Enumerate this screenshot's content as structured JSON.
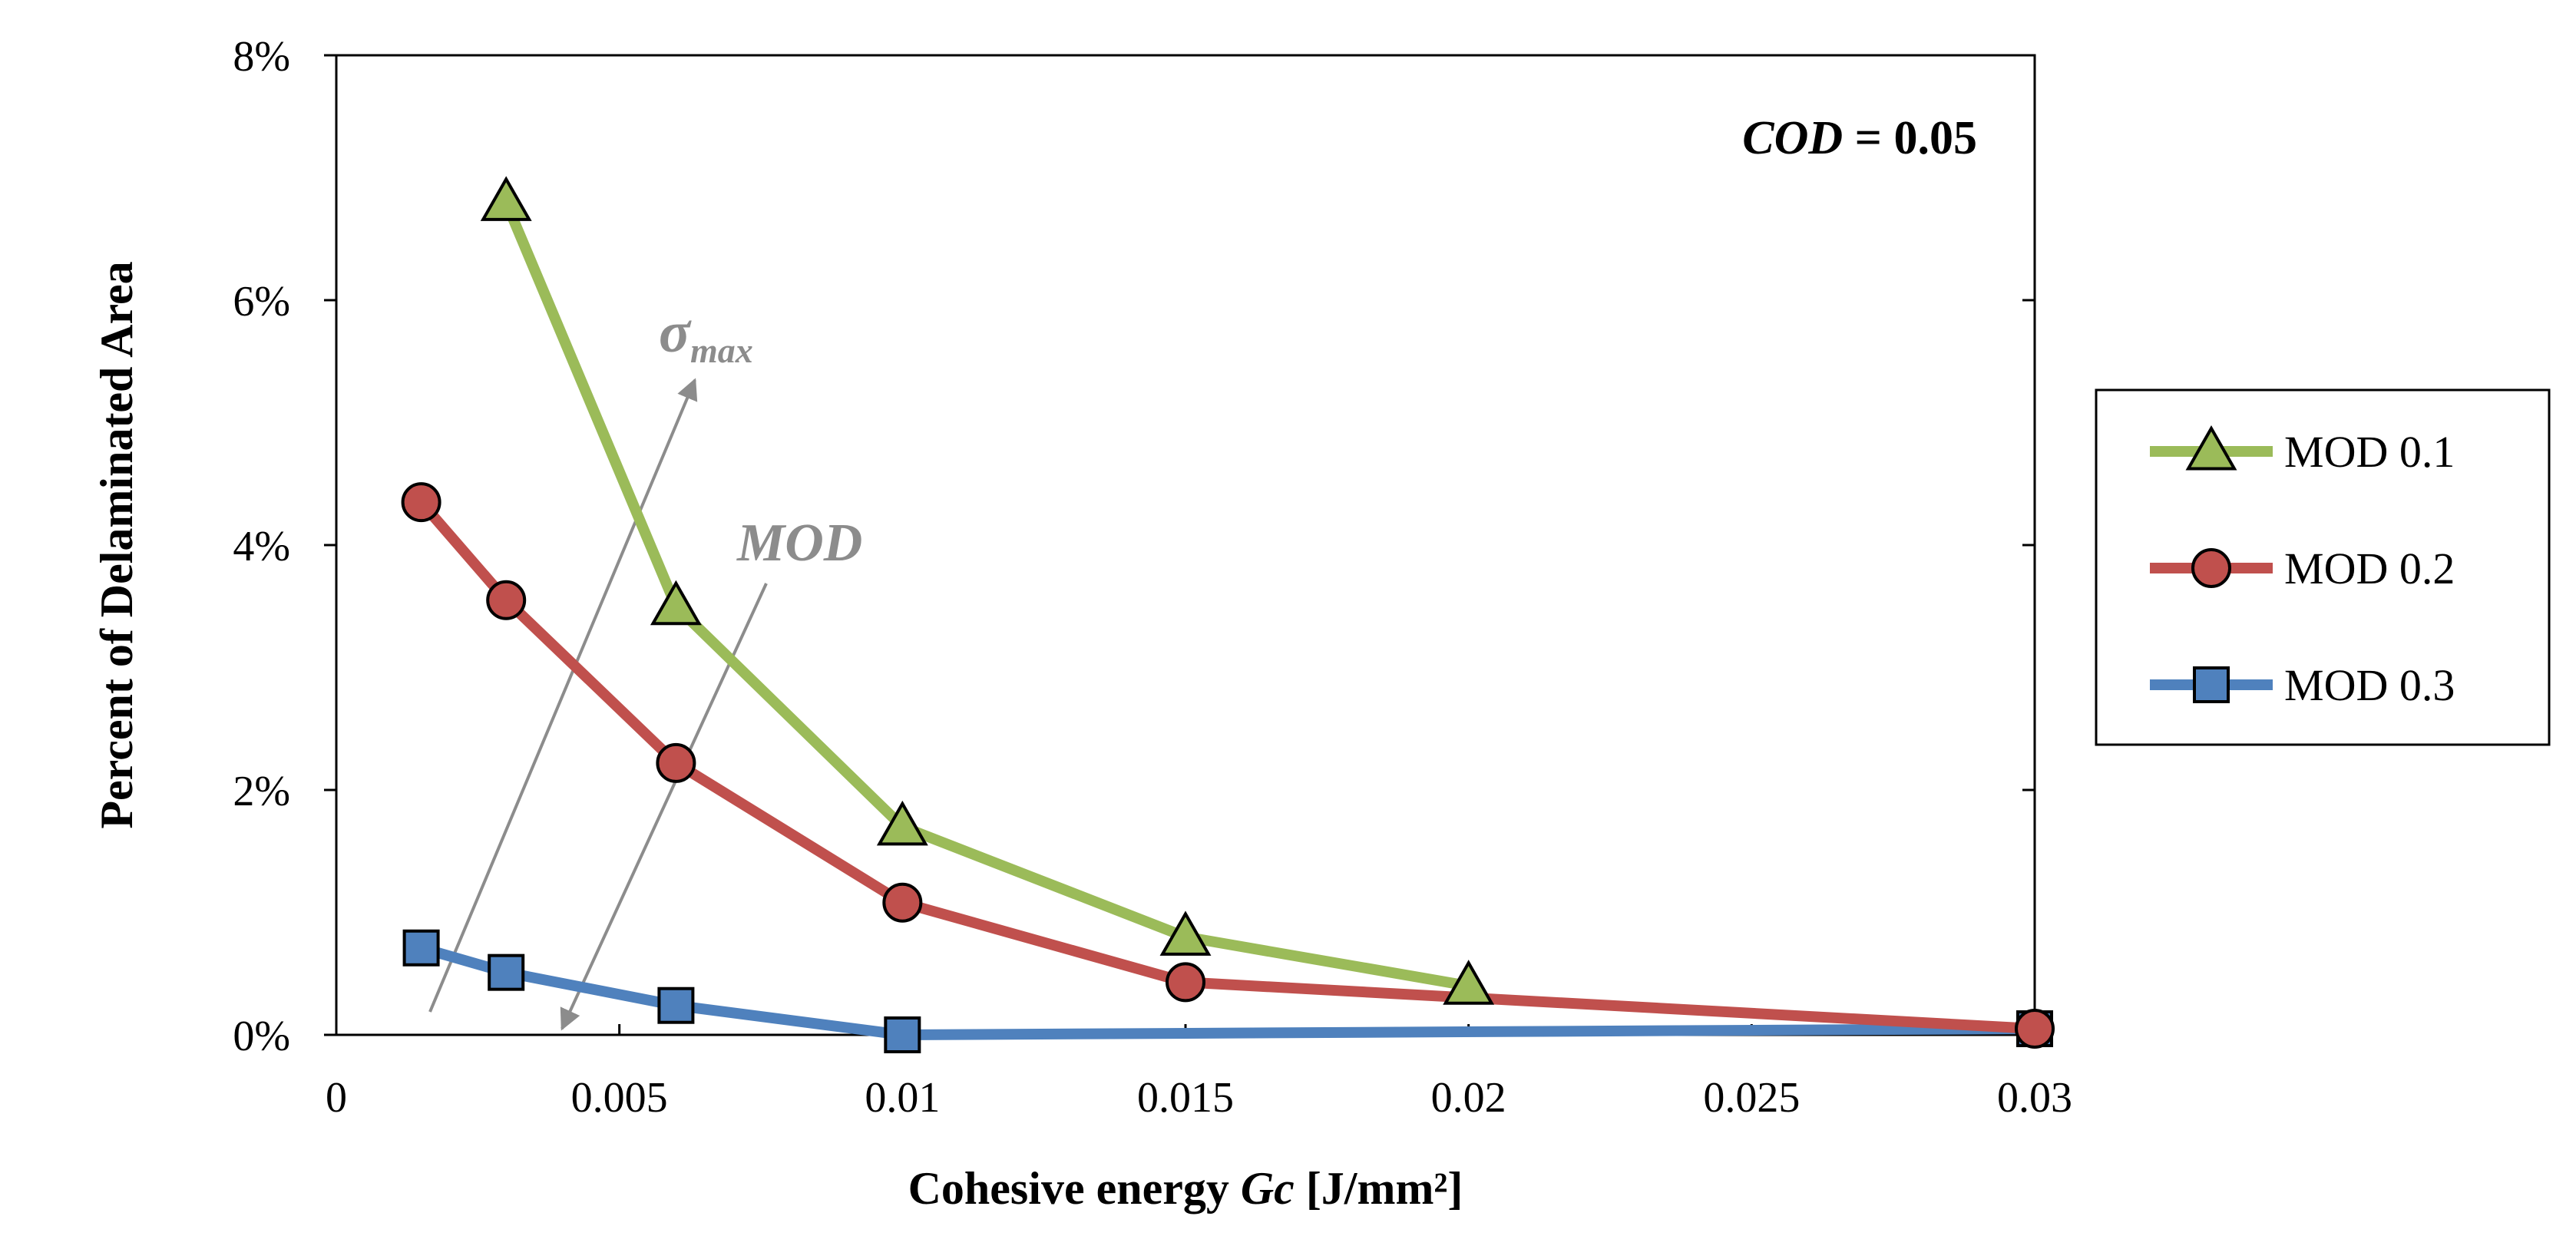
{
  "chart_data": {
    "type": "line",
    "xlabel_prefix": "Cohesive energy ",
    "xlabel_var": "Gc",
    "xlabel_unit": " [J/mm²]",
    "ylabel": "Percent of Delaminated Area",
    "xlim": [
      0,
      0.03
    ],
    "ylim": [
      0,
      0.08
    ],
    "x_ticks": [
      0,
      0.005,
      0.01,
      0.015,
      0.02,
      0.025,
      0.03
    ],
    "x_tick_labels": [
      "0",
      "0.005",
      "0.01",
      "0.015",
      "0.02",
      "0.025",
      "0.03"
    ],
    "y_ticks": [
      0,
      0.02,
      0.04,
      0.06,
      0.08
    ],
    "y_tick_labels": [
      "0%",
      "2%",
      "4%",
      "6%",
      "8%"
    ],
    "grid": false,
    "legend_position": "right",
    "annotation": {
      "var": "COD",
      "text": " = 0.05"
    },
    "arrow_labels": {
      "sigma": "σ",
      "sigma_sub": "max",
      "mod": "MOD"
    },
    "series": [
      {
        "name": "MOD 0.1",
        "marker": "triangle",
        "color": "#9bbb59",
        "x": [
          0.003,
          0.006,
          0.01,
          0.015,
          0.02
        ],
        "y": [
          0.068,
          0.035,
          0.017,
          0.008,
          0.004
        ]
      },
      {
        "name": "MOD 0.2",
        "marker": "circle",
        "color": "#c0504d",
        "x": [
          0.0015,
          0.003,
          0.006,
          0.01,
          0.015,
          0.03
        ],
        "y": [
          0.0435,
          0.0355,
          0.0222,
          0.0108,
          0.0043,
          0.0005
        ]
      },
      {
        "name": "MOD 0.3",
        "marker": "square",
        "color": "#4f81bd",
        "x": [
          0.0015,
          0.003,
          0.006,
          0.01,
          0.03
        ],
        "y": [
          0.0071,
          0.0051,
          0.0024,
          0.0,
          0.0005
        ]
      }
    ]
  }
}
